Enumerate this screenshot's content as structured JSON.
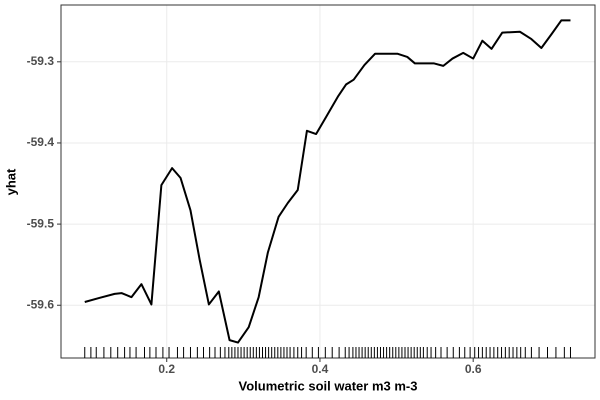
{
  "chart_data": {
    "type": "line",
    "xlabel": "Volumetric soil water m3 m-3",
    "ylabel": "yhat",
    "x": [
      0.093,
      0.112,
      0.132,
      0.141,
      0.154,
      0.167,
      0.18,
      0.193,
      0.207,
      0.218,
      0.231,
      0.243,
      0.255,
      0.268,
      0.282,
      0.293,
      0.307,
      0.32,
      0.332,
      0.346,
      0.358,
      0.371,
      0.383,
      0.395,
      0.408,
      0.424,
      0.434,
      0.444,
      0.458,
      0.472,
      0.484,
      0.501,
      0.514,
      0.524,
      0.549,
      0.561,
      0.573,
      0.587,
      0.6,
      0.612,
      0.624,
      0.638,
      0.661,
      0.676,
      0.689,
      0.703,
      0.715,
      0.727
    ],
    "values": [
      -59.596,
      -59.591,
      -59.586,
      -59.585,
      -59.59,
      -59.574,
      -59.599,
      -59.452,
      -59.431,
      -59.443,
      -59.483,
      -59.544,
      -59.599,
      -59.583,
      -59.643,
      -59.646,
      -59.627,
      -59.59,
      -59.535,
      -59.491,
      -59.474,
      -59.458,
      -59.385,
      -59.389,
      -59.368,
      -59.342,
      -59.328,
      -59.322,
      -59.304,
      -59.29,
      -59.29,
      -59.29,
      -59.294,
      -59.302,
      -59.302,
      -59.305,
      -59.296,
      -59.289,
      -59.296,
      -59.274,
      -59.284,
      -59.264,
      -59.263,
      -59.272,
      -59.283,
      -59.265,
      -59.249,
      -59.249
    ],
    "color": "#000000",
    "rug": [
      0.093,
      0.101,
      0.108,
      0.118,
      0.127,
      0.136,
      0.145,
      0.152,
      0.16,
      0.171,
      0.178,
      0.186,
      0.195,
      0.203,
      0.214,
      0.222,
      0.231,
      0.24,
      0.248,
      0.256,
      0.263,
      0.27,
      0.276,
      0.281,
      0.285,
      0.289,
      0.293,
      0.297,
      0.301,
      0.305,
      0.309,
      0.313,
      0.317,
      0.321,
      0.325,
      0.329,
      0.333,
      0.337,
      0.341,
      0.345,
      0.349,
      0.353,
      0.357,
      0.361,
      0.366,
      0.371,
      0.376,
      0.382,
      0.39,
      0.398,
      0.407,
      0.416,
      0.425,
      0.433,
      0.438,
      0.443,
      0.447,
      0.451,
      0.455,
      0.459,
      0.463,
      0.467,
      0.471,
      0.475,
      0.479,
      0.483,
      0.487,
      0.491,
      0.495,
      0.499,
      0.503,
      0.507,
      0.511,
      0.515,
      0.519,
      0.523,
      0.527,
      0.531,
      0.535,
      0.54,
      0.545,
      0.551,
      0.558,
      0.566,
      0.574,
      0.582,
      0.589,
      0.596,
      0.602,
      0.607,
      0.612,
      0.617,
      0.622,
      0.627,
      0.632,
      0.637,
      0.642,
      0.647,
      0.652,
      0.657,
      0.662,
      0.668,
      0.676,
      0.686,
      0.697,
      0.708,
      0.719,
      0.727
    ],
    "xlim": [
      0.062,
      0.759
    ],
    "ylim": [
      -59.665,
      -59.23
    ],
    "xticks": [
      0.2,
      0.4,
      0.6
    ],
    "yticks": [
      -59.6,
      -59.5,
      -59.4,
      -59.3
    ],
    "grid": true
  }
}
